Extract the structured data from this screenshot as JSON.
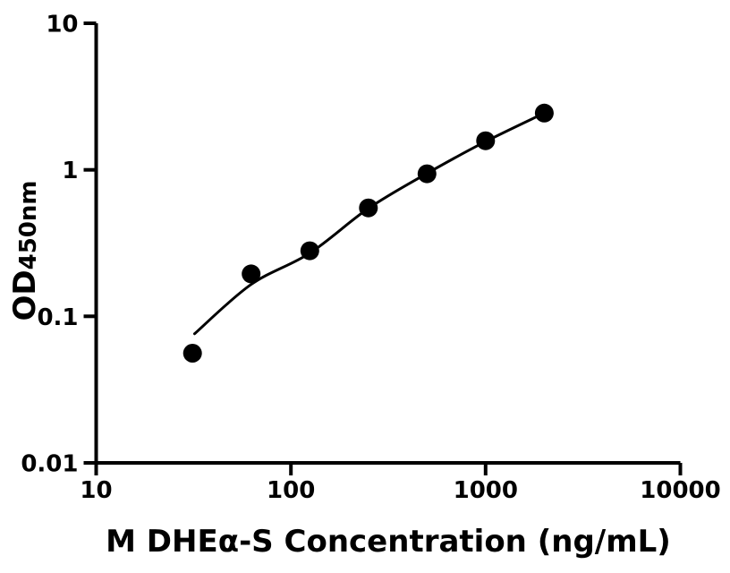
{
  "figure": {
    "background_color": "#ffffff",
    "foreground_color": "#000000"
  },
  "chart_data": {
    "type": "scatter",
    "title": "",
    "xlabel": "M DHEα-S Concentration (ng/mL)",
    "ylabel": "OD",
    "ylabel_subscript": "450nm",
    "xscale": "log",
    "yscale": "log",
    "xlim": [
      10,
      10000
    ],
    "ylim": [
      0.01,
      10
    ],
    "x_ticks": [
      {
        "value": 10,
        "label": "10"
      },
      {
        "value": 100,
        "label": "100"
      },
      {
        "value": 1000,
        "label": "1000"
      },
      {
        "value": 10000,
        "label": "10000"
      }
    ],
    "y_ticks": [
      {
        "value": 10,
        "label": "10"
      },
      {
        "value": 1,
        "label": "1"
      },
      {
        "value": 0.1,
        "label": "0.1"
      },
      {
        "value": 0.01,
        "label": "0.01"
      }
    ],
    "grid": false,
    "legend": false,
    "marker_color": "#000000",
    "line_color": "#000000",
    "series": [
      {
        "name": "standard-points",
        "type": "scatter",
        "marker": "circle",
        "x": [
          31.25,
          62.5,
          125,
          250,
          500,
          1000,
          2000
        ],
        "y": [
          0.056,
          0.195,
          0.28,
          0.55,
          0.94,
          1.58,
          2.44
        ]
      },
      {
        "name": "fitted-curve",
        "type": "line",
        "x": [
          32,
          62.5,
          125,
          250,
          500,
          1000,
          2000
        ],
        "y": [
          0.076,
          0.165,
          0.27,
          0.545,
          0.945,
          1.56,
          2.44
        ]
      }
    ]
  }
}
